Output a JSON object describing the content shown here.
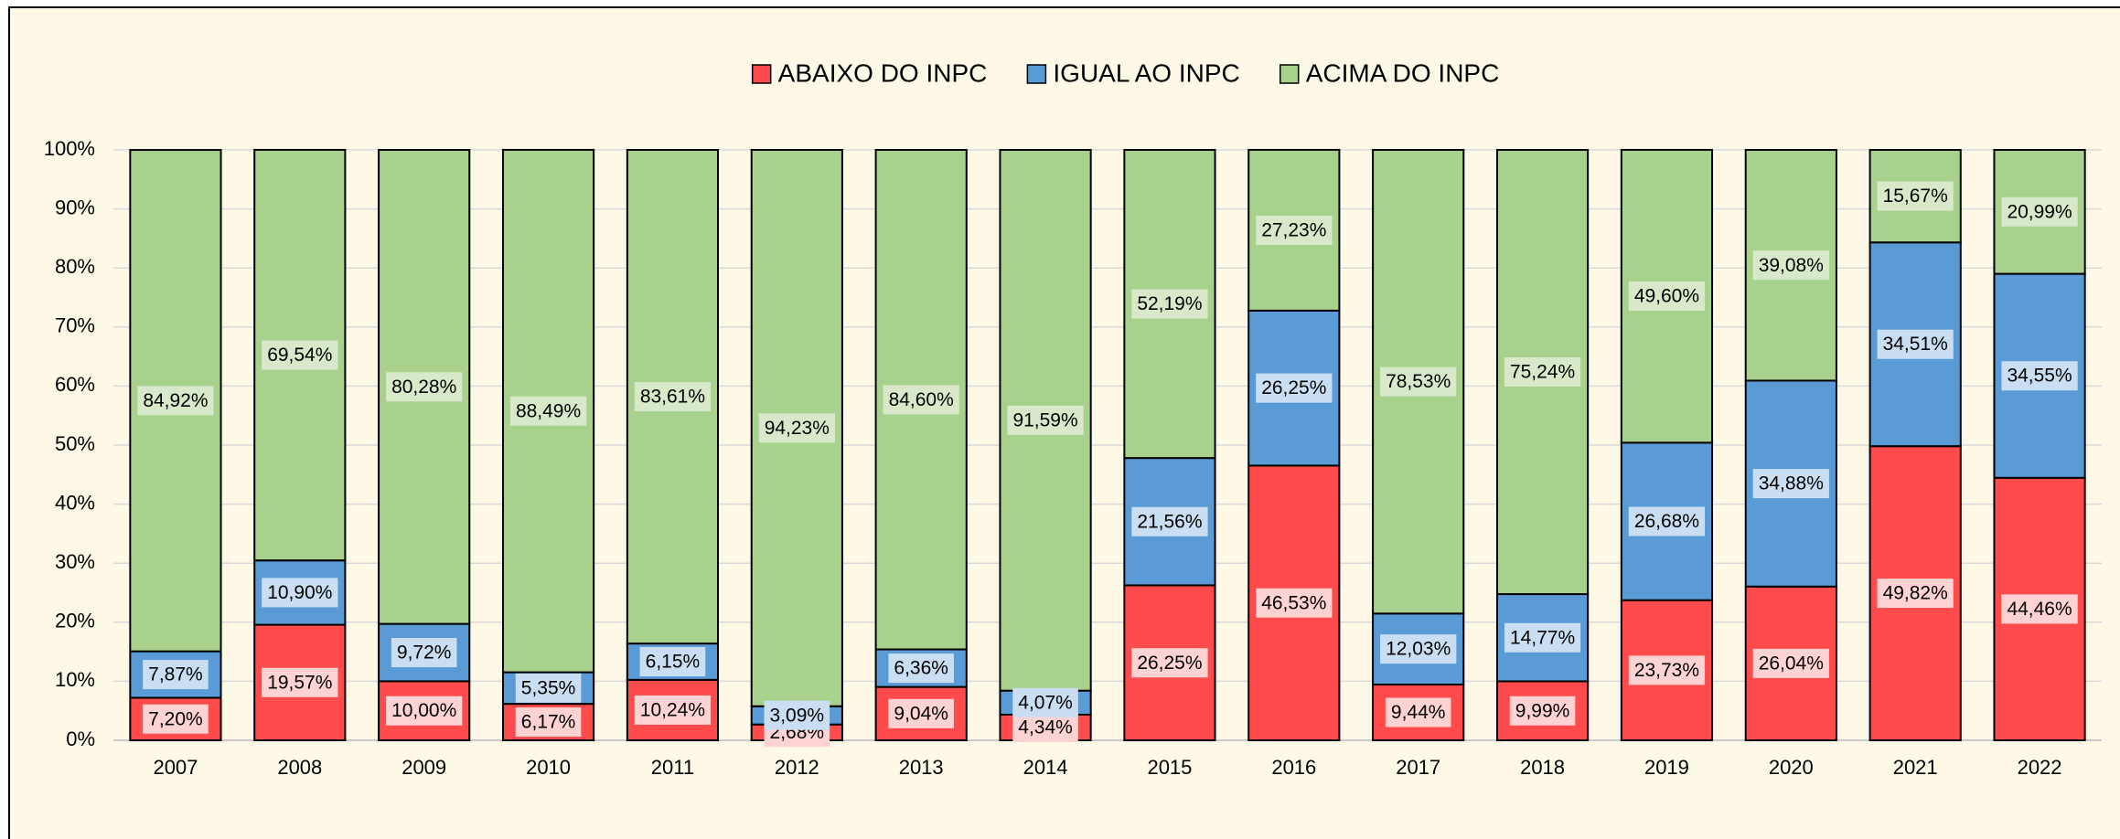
{
  "chart_data": {
    "type": "stacked_bar_100",
    "categories": [
      "2007",
      "2008",
      "2009",
      "2010",
      "2011",
      "2012",
      "2013",
      "2014",
      "2015",
      "2016",
      "2017",
      "2018",
      "2019",
      "2020",
      "2021",
      "2022"
    ],
    "series": [
      {
        "name": "ABAIXO DO INPC",
        "color": "#ff4b4b",
        "values": [
          7.2,
          19.57,
          10.0,
          6.17,
          10.24,
          2.68,
          9.04,
          4.34,
          26.25,
          46.53,
          9.44,
          9.99,
          23.73,
          26.04,
          49.82,
          44.46
        ],
        "value_labels": [
          "7,20%",
          "19,57%",
          "10,00%",
          "6,17%",
          "10,24%",
          "2,68%",
          "9,04%",
          "4,34%",
          "26,25%",
          "46,53%",
          "9,44%",
          "9,99%",
          "23,73%",
          "26,04%",
          "49,82%",
          "44,46%"
        ]
      },
      {
        "name": "IGUAL AO INPC",
        "color": "#5b9bd5",
        "values": [
          7.87,
          10.9,
          9.72,
          5.35,
          6.15,
          3.09,
          6.36,
          4.07,
          21.56,
          26.25,
          12.03,
          14.77,
          26.68,
          34.88,
          34.51,
          34.55
        ],
        "value_labels": [
          "7,87%",
          "10,90%",
          "9,72%",
          "5,35%",
          "6,15%",
          "3,09%",
          "6,36%",
          "4,07%",
          "21,56%",
          "26,25%",
          "12,03%",
          "14,77%",
          "26,68%",
          "34,88%",
          "34,51%",
          "34,55%"
        ]
      },
      {
        "name": "ACIMA DO INPC",
        "color": "#a9d18e",
        "values": [
          84.92,
          69.54,
          80.28,
          88.49,
          83.61,
          94.23,
          84.6,
          91.59,
          52.19,
          27.23,
          78.53,
          75.24,
          49.6,
          39.08,
          15.67,
          20.99
        ],
        "value_labels": [
          "84,92%",
          "69,54%",
          "80,28%",
          "88,49%",
          "83,61%",
          "94,23%",
          "84,60%",
          "91,59%",
          "52,19%",
          "27,23%",
          "78,53%",
          "75,24%",
          "49,60%",
          "39,08%",
          "15,67%",
          "20,99%"
        ]
      }
    ],
    "ylim": [
      0,
      100
    ],
    "yticks": [
      {
        "value": 0,
        "label": "0%"
      },
      {
        "value": 10,
        "label": "10%"
      },
      {
        "value": 20,
        "label": "20%"
      },
      {
        "value": 30,
        "label": "30%"
      },
      {
        "value": 40,
        "label": "40%"
      },
      {
        "value": 50,
        "label": "50%"
      },
      {
        "value": 60,
        "label": "60%"
      },
      {
        "value": 70,
        "label": "70%"
      },
      {
        "value": 80,
        "label": "80%"
      },
      {
        "value": 90,
        "label": "90%"
      },
      {
        "value": 100,
        "label": "100%"
      }
    ],
    "grid": true,
    "legend": "top"
  }
}
